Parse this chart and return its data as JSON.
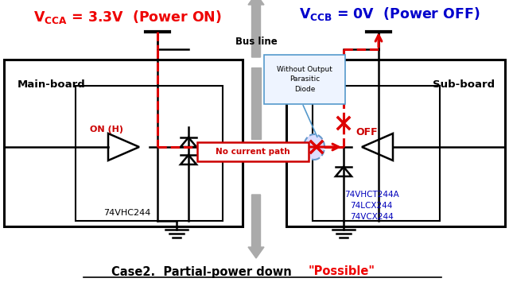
{
  "title_left_color": "#EE0000",
  "title_right_color": "#0000CC",
  "main_board_label": "Main-board",
  "sub_board_label": "Sub-board",
  "bus_line_label": "Bus line",
  "left_ic_label": "74VHC244",
  "right_ic_labels": [
    "74VHCT244A",
    "74LCX244",
    "74VCX244"
  ],
  "right_ic_color": "#0000BB",
  "on_h_label": "ON (H)",
  "on_h_color": "#CC0000",
  "off_label": "OFF",
  "off_color": "#CC0000",
  "no_current_label": "No current path",
  "no_current_color": "#CC0000",
  "parasitic_label": "Without Output\nParasitic\nDiode",
  "case_label_black": "Case2.  Partial-power down",
  "case_label_red": "\"Possible\"",
  "case_label_red_color": "#EE0000",
  "bg_color": "#FFFFFF"
}
